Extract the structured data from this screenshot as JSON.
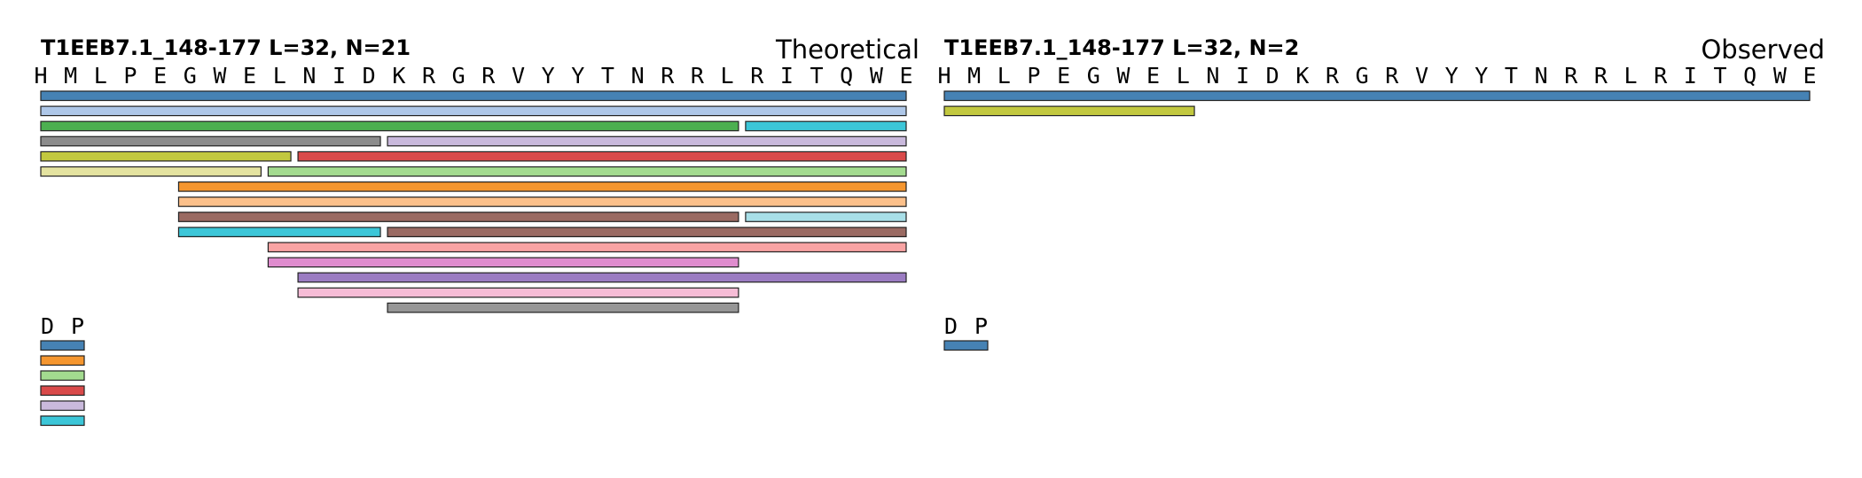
{
  "panels": [
    {
      "id": "theoretical",
      "title": "T1EEB7.1_148-177  L=32, N=21",
      "label": "Theoretical",
      "sequence": [
        "H",
        "M",
        "L",
        "P",
        "E",
        "G",
        "W",
        "E",
        "L",
        "N",
        "I",
        "D",
        "K",
        "R",
        "G",
        "R",
        "V",
        "Y",
        "Y",
        "T",
        "N",
        "R",
        "R",
        "L",
        "R",
        "I",
        "T",
        "Q",
        "W",
        "E"
      ],
      "fragments": [
        {
          "start": 0,
          "end": 29,
          "row": 0,
          "color": "#4682b4"
        },
        {
          "start": 0,
          "end": 29,
          "row": 1,
          "color": "#aec7e8"
        },
        {
          "start": 0,
          "end": 23,
          "row": 2,
          "color": "#4caf50"
        },
        {
          "start": 24,
          "end": 29,
          "row": 2,
          "color": "#3cc6d8"
        },
        {
          "start": 0,
          "end": 11,
          "row": 3,
          "color": "#8c8c8c"
        },
        {
          "start": 12,
          "end": 29,
          "row": 3,
          "color": "#c9b9dc"
        },
        {
          "start": 0,
          "end": 8,
          "row": 4,
          "color": "#c2c83f"
        },
        {
          "start": 9,
          "end": 29,
          "row": 4,
          "color": "#d94a4a"
        },
        {
          "start": 0,
          "end": 7,
          "row": 5,
          "color": "#e4e3a0"
        },
        {
          "start": 8,
          "end": 29,
          "row": 5,
          "color": "#a3db8f"
        },
        {
          "start": 5,
          "end": 29,
          "row": 6,
          "color": "#f5962f"
        },
        {
          "start": 5,
          "end": 29,
          "row": 7,
          "color": "#fcc08a"
        },
        {
          "start": 5,
          "end": 23,
          "row": 8,
          "color": "#9a6a62"
        },
        {
          "start": 24,
          "end": 29,
          "row": 8,
          "color": "#a8dfe8"
        },
        {
          "start": 5,
          "end": 11,
          "row": 9,
          "color": "#3cc6d8"
        },
        {
          "start": 12,
          "end": 29,
          "row": 9,
          "color": "#9a6a62"
        },
        {
          "start": 8,
          "end": 29,
          "row": 10,
          "color": "#f8a3a3"
        },
        {
          "start": 8,
          "end": 23,
          "row": 11,
          "color": "#df8cce"
        },
        {
          "start": 9,
          "end": 29,
          "row": 12,
          "color": "#9b7cc2"
        },
        {
          "start": 9,
          "end": 23,
          "row": 13,
          "color": "#f6bcd6"
        },
        {
          "start": 12,
          "end": 23,
          "row": 14,
          "color": "#969696"
        }
      ],
      "tail_residues": [
        "D",
        "P"
      ],
      "tail_bars": [
        "#4682b4",
        "#f5962f",
        "#a3db8f",
        "#d94a4a",
        "#c9b9dc",
        "#3cc6d8"
      ]
    },
    {
      "id": "observed",
      "title": "T1EEB7.1_148-177  L=32, N=2",
      "label": "Observed",
      "sequence": [
        "H",
        "M",
        "L",
        "P",
        "E",
        "G",
        "W",
        "E",
        "L",
        "N",
        "I",
        "D",
        "K",
        "R",
        "G",
        "R",
        "V",
        "Y",
        "Y",
        "T",
        "N",
        "R",
        "R",
        "L",
        "R",
        "I",
        "T",
        "Q",
        "W",
        "E"
      ],
      "fragments": [
        {
          "start": 0,
          "end": 29,
          "row": 0,
          "color": "#4682b4"
        },
        {
          "start": 0,
          "end": 8,
          "row": 1,
          "color": "#c2c83f"
        }
      ],
      "tail_residues": [
        "D",
        "P"
      ],
      "tail_bars": [
        "#4682b4"
      ]
    }
  ]
}
